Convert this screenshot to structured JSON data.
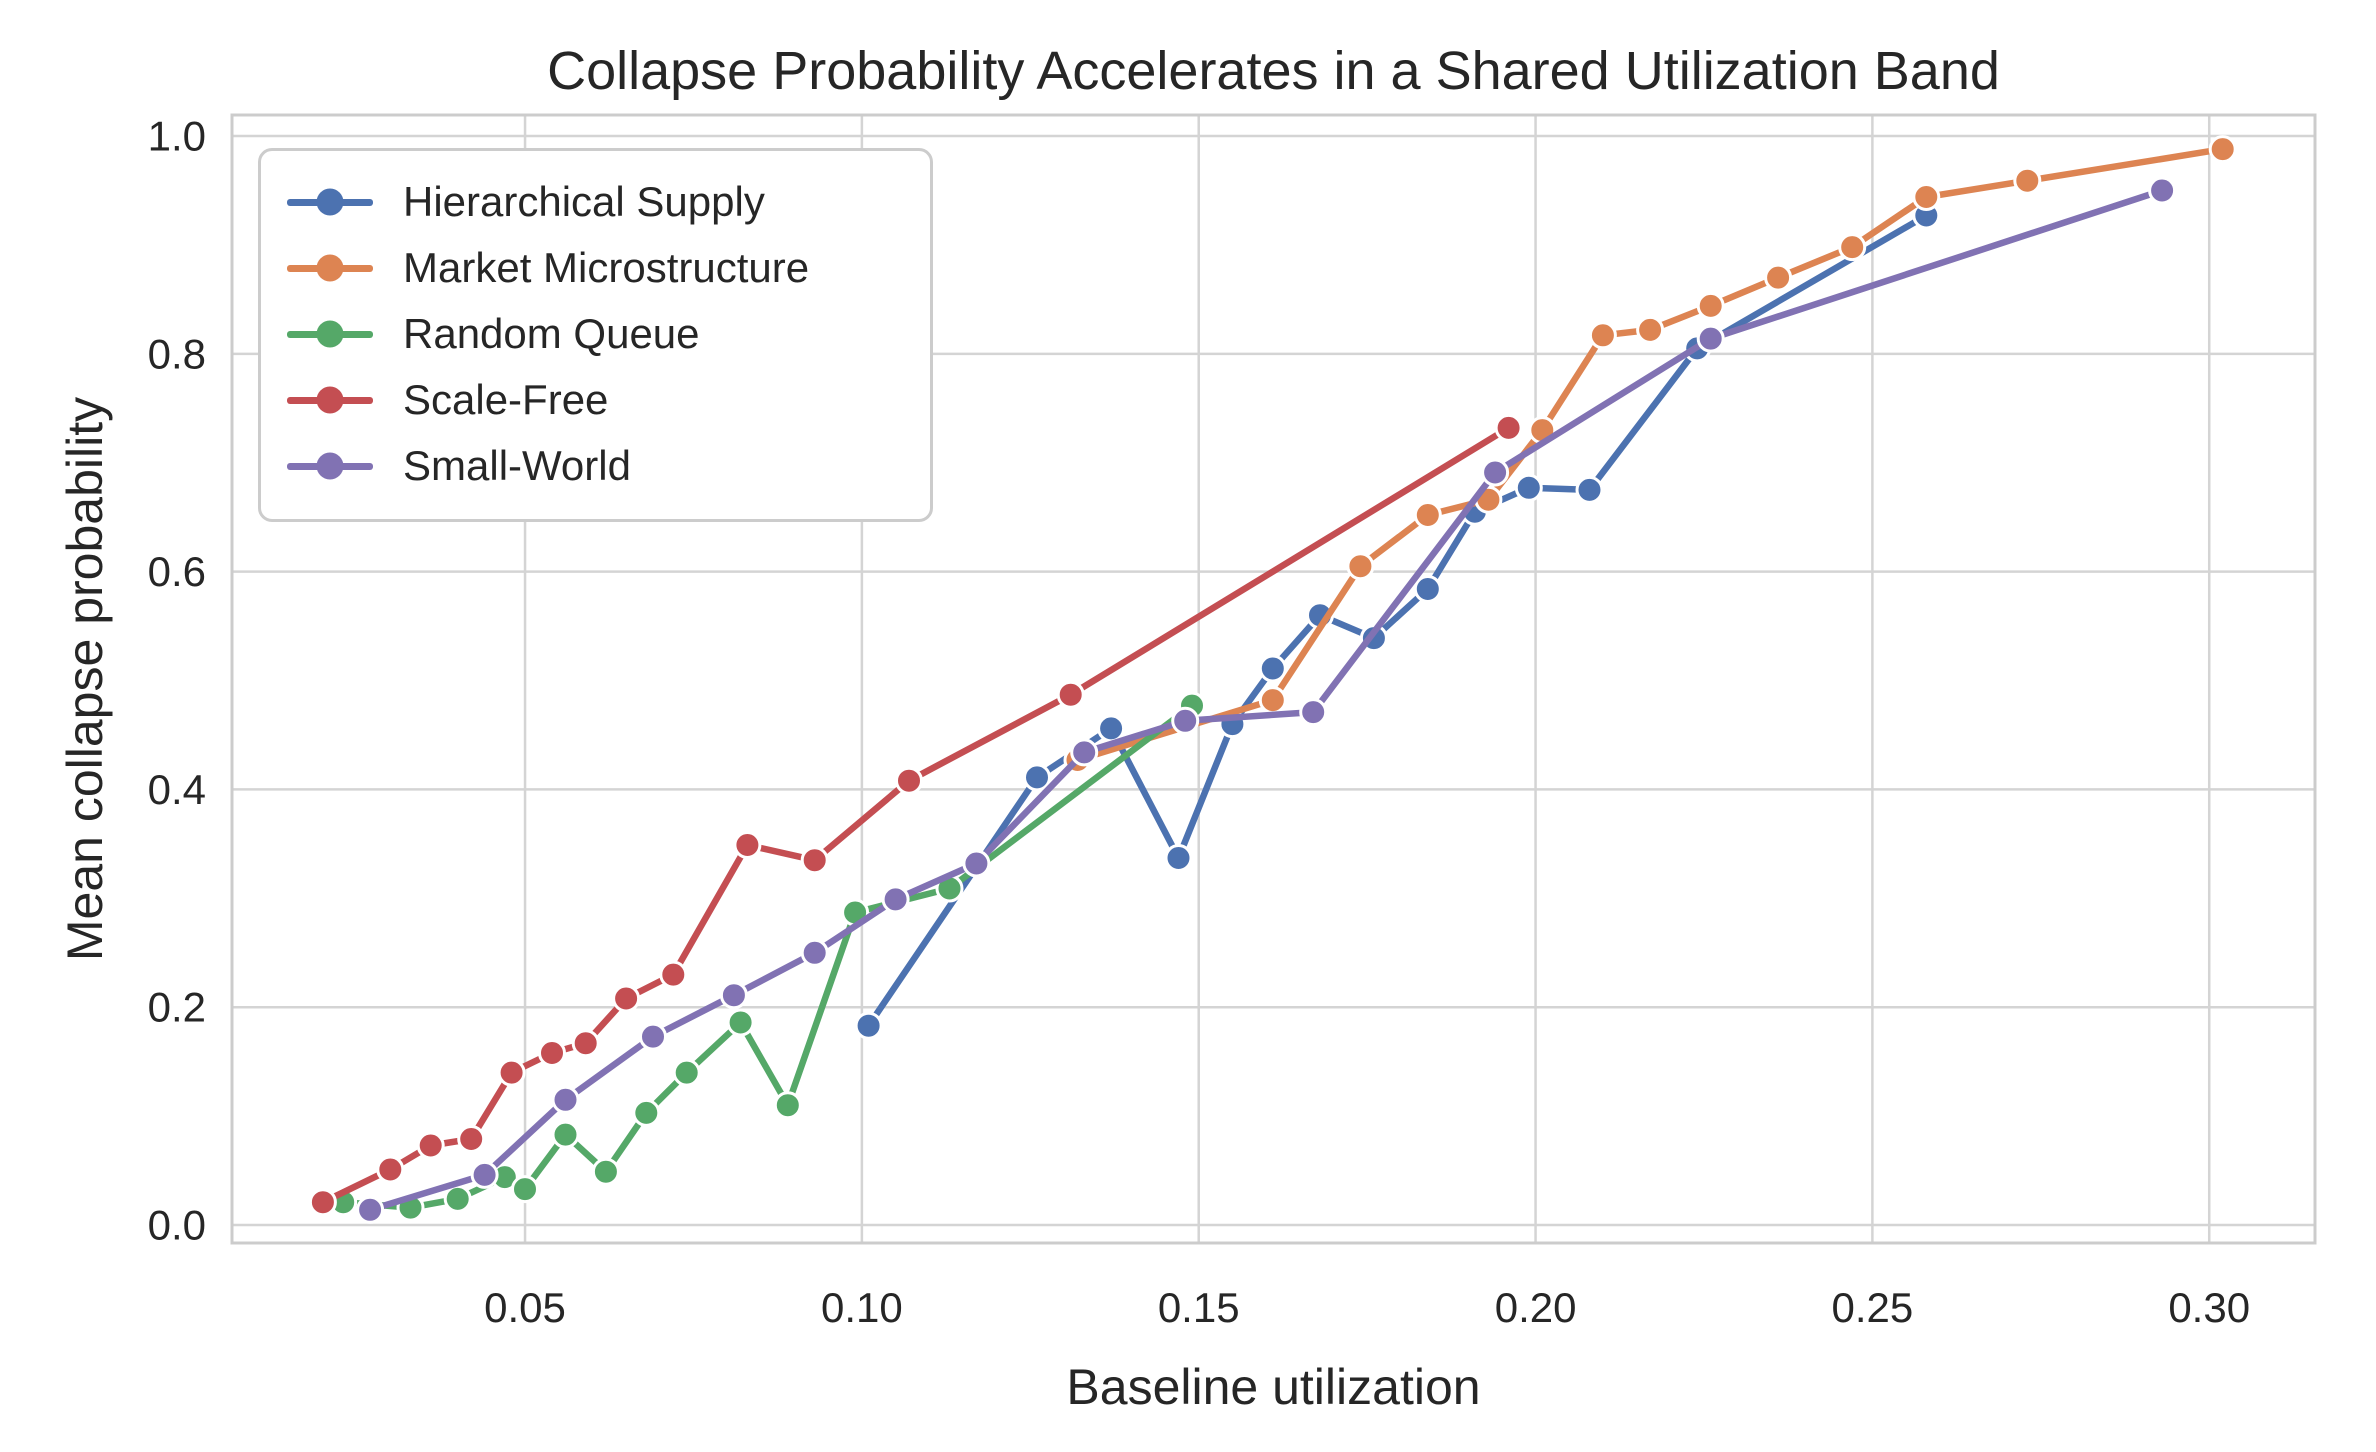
{
  "chart_data": {
    "type": "line",
    "title": "Collapse Probability Accelerates in a Shared Utilization Band",
    "xlabel": "Baseline utilization",
    "ylabel": "Mean collapse probability",
    "x_ticks": [
      0.05,
      0.1,
      0.15,
      0.2,
      0.25,
      0.3
    ],
    "x_tick_labels": [
      "0.05",
      "0.10",
      "0.15",
      "0.20",
      "0.25",
      "0.30"
    ],
    "y_ticks": [
      0.0,
      0.2,
      0.4,
      0.6,
      0.8,
      1.0
    ],
    "y_tick_labels": [
      "0.0",
      "0.2",
      "0.4",
      "0.6",
      "0.8",
      "1.0"
    ],
    "xlim": [
      0.0065,
      0.3157
    ],
    "ylim": [
      -0.0165,
      1.0193
    ],
    "grid": true,
    "legend_position": "upper left",
    "series": [
      {
        "name": "Hierarchical Supply",
        "color": "#4C72B0",
        "x": [
          0.101,
          0.126,
          0.137,
          0.147,
          0.155,
          0.161,
          0.168,
          0.176,
          0.184,
          0.191,
          0.199,
          0.208,
          0.224,
          0.258
        ],
        "y": [
          0.183,
          0.411,
          0.456,
          0.337,
          0.46,
          0.511,
          0.56,
          0.539,
          0.584,
          0.655,
          0.677,
          0.675,
          0.805,
          0.927
        ]
      },
      {
        "name": "Market Microstructure",
        "color": "#DD8452",
        "x": [
          0.132,
          0.161,
          0.174,
          0.184,
          0.193,
          0.201,
          0.21,
          0.217,
          0.226,
          0.236,
          0.247,
          0.258,
          0.273,
          0.302
        ],
        "y": [
          0.427,
          0.482,
          0.605,
          0.652,
          0.666,
          0.73,
          0.817,
          0.822,
          0.844,
          0.87,
          0.898,
          0.944,
          0.959,
          0.988
        ]
      },
      {
        "name": "Random Queue",
        "color": "#55A868",
        "x": [
          0.023,
          0.033,
          0.04,
          0.047,
          0.05,
          0.056,
          0.062,
          0.068,
          0.074,
          0.082,
          0.089,
          0.099,
          0.113,
          0.149
        ],
        "y": [
          0.021,
          0.016,
          0.024,
          0.044,
          0.033,
          0.083,
          0.049,
          0.103,
          0.14,
          0.186,
          0.11,
          0.287,
          0.309,
          0.477
        ]
      },
      {
        "name": "Scale-Free",
        "color": "#C44E52",
        "x": [
          0.02,
          0.03,
          0.036,
          0.042,
          0.048,
          0.054,
          0.059,
          0.065,
          0.072,
          0.083,
          0.093,
          0.107,
          0.131,
          0.196
        ],
        "y": [
          0.021,
          0.051,
          0.073,
          0.079,
          0.14,
          0.158,
          0.167,
          0.208,
          0.23,
          0.349,
          0.335,
          0.408,
          0.487,
          0.732
        ]
      },
      {
        "name": "Small-World",
        "color": "#8172B3",
        "x": [
          0.027,
          0.044,
          0.056,
          0.069,
          0.081,
          0.093,
          0.105,
          0.117,
          0.133,
          0.148,
          0.167,
          0.194,
          0.226,
          0.293
        ],
        "y": [
          0.014,
          0.046,
          0.115,
          0.173,
          0.211,
          0.25,
          0.299,
          0.332,
          0.434,
          0.463,
          0.471,
          0.691,
          0.814,
          0.95
        ]
      }
    ]
  },
  "style": {
    "background": "#ffffff",
    "grid_color": "#d4d4d4",
    "spine_color": "#cccccc",
    "text_color": "#262626",
    "marker_edge_color": "#ffffff"
  }
}
